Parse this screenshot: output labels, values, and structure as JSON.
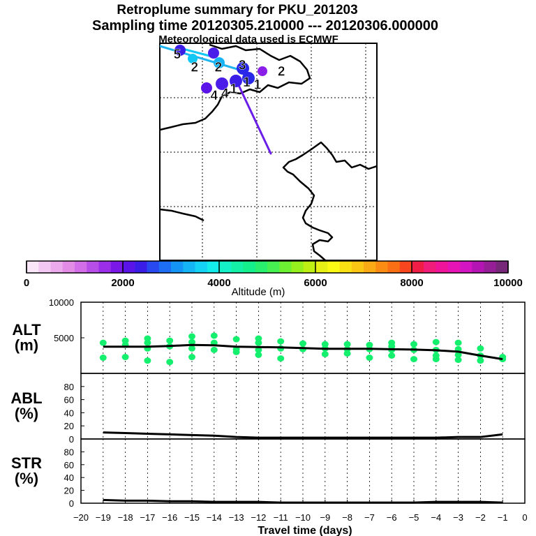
{
  "header": {
    "title": "Retroplume summary for PKU_201203",
    "sampling": "Sampling time   20120305.210000 --- 20120306.000000",
    "meteo": "Meteorological data used is ECMWF"
  },
  "map": {
    "labels": [
      {
        "text": "5",
        "lon": 0.08,
        "lat": 0.93
      },
      {
        "text": "2",
        "lon": 0.16,
        "lat": 0.87
      },
      {
        "text": "2",
        "lon": 0.27,
        "lat": 0.87
      },
      {
        "text": "3",
        "lon": 0.38,
        "lat": 0.88
      },
      {
        "text": "2",
        "lon": 0.56,
        "lat": 0.85
      },
      {
        "text": "1",
        "lon": 0.4,
        "lat": 0.8
      },
      {
        "text": "1",
        "lon": 0.45,
        "lat": 0.79
      },
      {
        "text": "4",
        "lon": 0.25,
        "lat": 0.74
      },
      {
        "text": "4",
        "lon": 0.3,
        "lat": 0.75
      },
      {
        "text": "1",
        "lon": 0.34,
        "lat": 0.77
      }
    ]
  },
  "colorbar": {
    "label": "Altitude (m)",
    "ticks": [
      "0",
      "2000",
      "4000",
      "6000",
      "8000",
      "10000"
    ],
    "colors": [
      "#f9e6f9",
      "#f3c8f3",
      "#ebaaeb",
      "#e38ce6",
      "#d26ee8",
      "#b84ee8",
      "#9b2ee8",
      "#7a18e8",
      "#5a14e8",
      "#3a1ee8",
      "#2848f0",
      "#1e6ef5",
      "#1494f5",
      "#14b4f5",
      "#14d2f5",
      "#14ebeb",
      "#14f0c8",
      "#14f0a5",
      "#14f08c",
      "#28f06e",
      "#46f050",
      "#6ef032",
      "#96f01e",
      "#bef014",
      "#e6f014",
      "#fafa14",
      "#fae114",
      "#fac814",
      "#faaa14",
      "#fa8c14",
      "#fa6e14",
      "#fa461e",
      "#f01e46",
      "#f01e7a",
      "#f0149b",
      "#e614b4",
      "#d214c3",
      "#b414b4",
      "#961e96",
      "#782878"
    ]
  },
  "chart_data": [
    {
      "type": "scatter",
      "name": "ALT",
      "ylabel": "ALT\n(m)",
      "ylabel_lines": [
        "ALT",
        "(m)"
      ],
      "ylim": [
        0,
        10000
      ],
      "yticks": [
        "5000",
        "10000"
      ],
      "xlim": [
        -20,
        0
      ],
      "mean_line": {
        "x": [
          -19,
          -18,
          -17,
          -16,
          -15,
          -14,
          -13,
          -12,
          -11,
          -10,
          -9,
          -8,
          -7,
          -6,
          -5,
          -4,
          -3,
          -2,
          -1
        ],
        "y": [
          3750,
          3750,
          3750,
          3850,
          4000,
          3950,
          3750,
          3700,
          3650,
          3550,
          3450,
          3450,
          3450,
          3400,
          3350,
          3250,
          3050,
          2500,
          2000
        ]
      },
      "points": [
        {
          "x": -19,
          "y": 4300
        },
        {
          "x": -19,
          "y": 2200
        },
        {
          "x": -18,
          "y": 4600
        },
        {
          "x": -18,
          "y": 4000
        },
        {
          "x": -18,
          "y": 2300
        },
        {
          "x": -17,
          "y": 4900
        },
        {
          "x": -17,
          "y": 4300
        },
        {
          "x": -17,
          "y": 3500
        },
        {
          "x": -17,
          "y": 1800
        },
        {
          "x": -16,
          "y": 4600
        },
        {
          "x": -16,
          "y": 3800
        },
        {
          "x": -16,
          "y": 1600
        },
        {
          "x": -15,
          "y": 5200
        },
        {
          "x": -15,
          "y": 4400
        },
        {
          "x": -15,
          "y": 3500
        },
        {
          "x": -15,
          "y": 2300
        },
        {
          "x": -14,
          "y": 5300
        },
        {
          "x": -14,
          "y": 4300
        },
        {
          "x": -14,
          "y": 3300
        },
        {
          "x": -13,
          "y": 4800
        },
        {
          "x": -13,
          "y": 3400
        },
        {
          "x": -13,
          "y": 3000
        },
        {
          "x": -12,
          "y": 4900
        },
        {
          "x": -12,
          "y": 4300
        },
        {
          "x": -12,
          "y": 3300
        },
        {
          "x": -12,
          "y": 2600
        },
        {
          "x": -11,
          "y": 4500
        },
        {
          "x": -11,
          "y": 3500
        },
        {
          "x": -11,
          "y": 2100
        },
        {
          "x": -10,
          "y": 4200
        },
        {
          "x": -10,
          "y": 3400
        },
        {
          "x": -9,
          "y": 4100
        },
        {
          "x": -9,
          "y": 3500
        },
        {
          "x": -9,
          "y": 2700
        },
        {
          "x": -8,
          "y": 4100
        },
        {
          "x": -8,
          "y": 3400
        },
        {
          "x": -8,
          "y": 2800
        },
        {
          "x": -7,
          "y": 4000
        },
        {
          "x": -7,
          "y": 3400
        },
        {
          "x": -7,
          "y": 2200
        },
        {
          "x": -6,
          "y": 4300
        },
        {
          "x": -6,
          "y": 3800
        },
        {
          "x": -6,
          "y": 3300
        },
        {
          "x": -6,
          "y": 2500
        },
        {
          "x": -5,
          "y": 4100
        },
        {
          "x": -5,
          "y": 3300
        },
        {
          "x": -5,
          "y": 2000
        },
        {
          "x": -4,
          "y": 4400
        },
        {
          "x": -4,
          "y": 3300
        },
        {
          "x": -4,
          "y": 2500
        },
        {
          "x": -4,
          "y": 2000
        },
        {
          "x": -3,
          "y": 4300
        },
        {
          "x": -3,
          "y": 3400
        },
        {
          "x": -3,
          "y": 2600
        },
        {
          "x": -3,
          "y": 1900
        },
        {
          "x": -2,
          "y": 3500
        },
        {
          "x": -2,
          "y": 2500
        },
        {
          "x": -2,
          "y": 1800
        },
        {
          "x": -1,
          "y": 2300
        },
        {
          "x": -1,
          "y": 2000
        }
      ],
      "color": "#14f06e"
    },
    {
      "type": "line",
      "name": "ABL",
      "ylabel_lines": [
        "ABL",
        "(%)"
      ],
      "ylim": [
        0,
        100
      ],
      "yticks": [
        "0",
        "20",
        "40",
        "60",
        "80"
      ],
      "xlim": [
        -20,
        0
      ],
      "x": [
        -19,
        -18,
        -17,
        -16,
        -15,
        -14,
        -13,
        -12,
        -11,
        -10,
        -9,
        -8,
        -7,
        -6,
        -5,
        -4,
        -3,
        -2,
        -1
      ],
      "y": [
        10,
        9,
        8,
        7,
        6,
        5,
        3,
        2,
        2,
        2,
        2,
        2,
        2,
        2,
        2,
        2,
        3,
        3,
        7
      ]
    },
    {
      "type": "line",
      "name": "STR",
      "ylabel_lines": [
        "STR",
        "(%)"
      ],
      "ylim": [
        0,
        100
      ],
      "yticks": [
        "0",
        "20",
        "40",
        "60",
        "80"
      ],
      "xlim": [
        -20,
        0
      ],
      "xlabel": "Travel time (days)",
      "xticks": [
        "−20",
        "−19",
        "−18",
        "−17",
        "−16",
        "−15",
        "−14",
        "−13",
        "−12",
        "−11",
        "−10",
        "−9",
        "−8",
        "−7",
        "−6",
        "−5",
        "−4",
        "−3",
        "−2",
        "−1",
        "0"
      ],
      "x": [
        -19,
        -18,
        -17,
        -16,
        -15,
        -14,
        -13,
        -12,
        -11,
        -10,
        -9,
        -8,
        -7,
        -6,
        -5,
        -4,
        -3,
        -2,
        -1
      ],
      "y": [
        5,
        4,
        4,
        3,
        3,
        2,
        2,
        2,
        1,
        1,
        1,
        1,
        1,
        1,
        1,
        2,
        2,
        2,
        1
      ]
    }
  ]
}
